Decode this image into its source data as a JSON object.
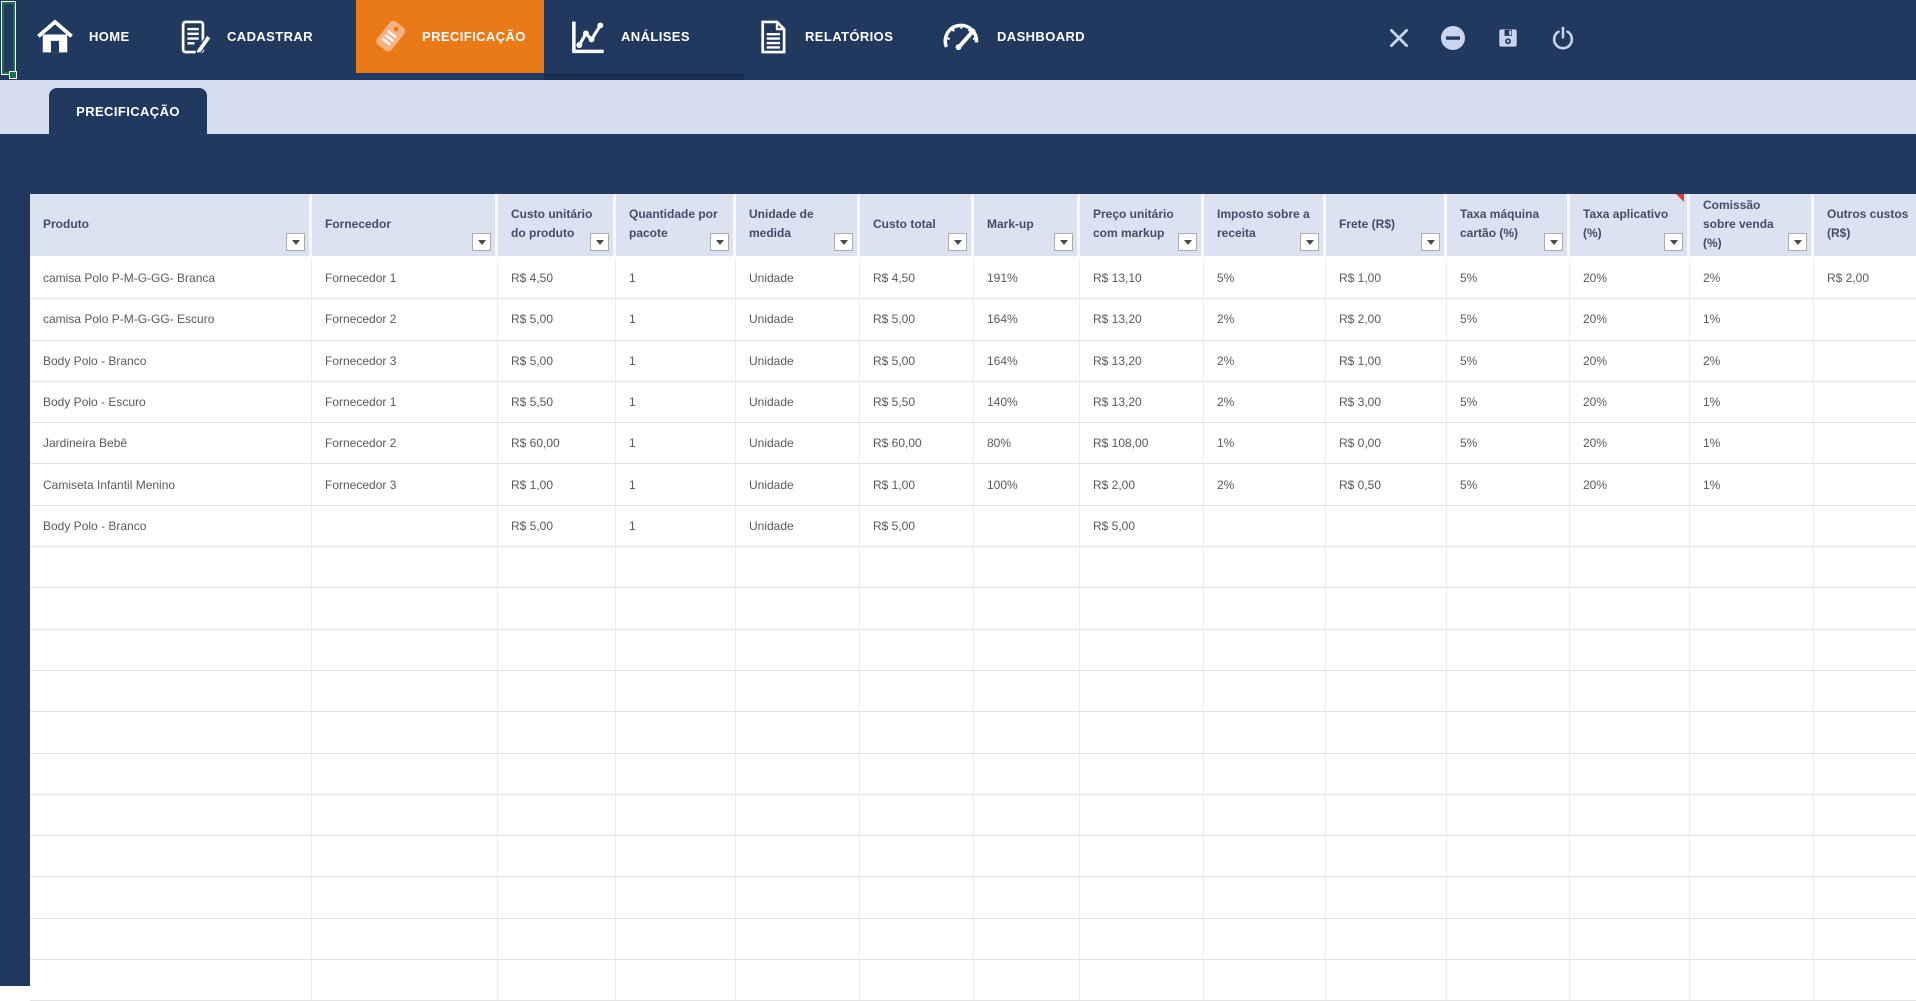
{
  "navbar": {
    "items": [
      {
        "id": "home",
        "label": "HOME",
        "icon": "home-icon",
        "active": false
      },
      {
        "id": "cadastrar",
        "label": "CADASTRAR",
        "icon": "document-pencil-icon",
        "active": false
      },
      {
        "id": "precificacao",
        "label": "PRECIFICAÇÃO",
        "icon": "price-tag-icon",
        "active": true
      },
      {
        "id": "analises",
        "label": "ANÁLISES",
        "icon": "line-chart-icon",
        "active": false
      },
      {
        "id": "relatorios",
        "label": "RELATÓRIOS",
        "icon": "report-document-icon",
        "active": false
      },
      {
        "id": "dashboard",
        "label": "DASHBOARD",
        "icon": "gauge-icon",
        "active": false
      }
    ],
    "window_controls": [
      {
        "id": "close",
        "icon": "close-icon"
      },
      {
        "id": "minimize",
        "icon": "minimize-circle-icon"
      },
      {
        "id": "save",
        "icon": "save-floppy-icon"
      },
      {
        "id": "power",
        "icon": "power-icon"
      }
    ]
  },
  "tabstrip": {
    "tabs": [
      {
        "label": "PRECIFICAÇÃO",
        "active": true
      }
    ]
  },
  "table": {
    "columns": [
      "Produto",
      "Fornecedor",
      "Custo unitário do produto",
      "Quantidade por pacote",
      "Unidade de medida",
      "Custo total",
      "Mark-up",
      "Preço unitário com markup",
      "Imposto sobre a receita",
      "Frete (R$)",
      "Taxa máquina cartão (%)",
      "Taxa aplicativo (%)",
      "Comissão sobre venda (%)",
      "Outros custos (R$)"
    ],
    "comment_marker_column_index": 11,
    "has_filter_buttons": true,
    "rows": [
      [
        "camisa Polo P-M-G-GG- Branca",
        "Fornecedor 1",
        "R$ 4,50",
        "1",
        "Unidade",
        "R$ 4,50",
        "191%",
        "R$ 13,10",
        "5%",
        "R$ 1,00",
        "5%",
        "20%",
        "2%",
        "R$ 2,00"
      ],
      [
        "camisa Polo P-M-G-GG- Escuro",
        "Fornecedor 2",
        "R$ 5,00",
        "1",
        "Unidade",
        "R$ 5,00",
        "164%",
        "R$ 13,20",
        "2%",
        "R$ 2,00",
        "5%",
        "20%",
        "1%",
        ""
      ],
      [
        "Body Polo - Branco",
        "Fornecedor 3",
        "R$ 5,00",
        "1",
        "Unidade",
        "R$ 5,00",
        "164%",
        "R$ 13,20",
        "2%",
        "R$ 1,00",
        "5%",
        "20%",
        "2%",
        ""
      ],
      [
        "Body Polo - Escuro",
        "Fornecedor 1",
        "R$ 5,50",
        "1",
        "Unidade",
        "R$ 5,50",
        "140%",
        "R$ 13,20",
        "2%",
        "R$ 3,00",
        "5%",
        "20%",
        "1%",
        ""
      ],
      [
        "Jardineira Bebê",
        "Fornecedor 2",
        "R$ 60,00",
        "1",
        "Unidade",
        "R$ 60,00",
        "80%",
        "R$ 108,00",
        "1%",
        "R$ 0,00",
        "5%",
        "20%",
        "1%",
        ""
      ],
      [
        "Camiseta Infantil Menino",
        "Fornecedor 3",
        "R$ 1,00",
        "1",
        "Unidade",
        "R$ 1,00",
        "100%",
        "R$ 2,00",
        "2%",
        "R$ 0,50",
        "5%",
        "20%",
        "1%",
        ""
      ],
      [
        "Body Polo - Branco",
        "",
        "R$ 5,00",
        "1",
        "Unidade",
        "R$ 5,00",
        "",
        "R$ 5,00",
        "",
        "",
        "",
        "",
        "",
        ""
      ]
    ],
    "empty_row_count": 11
  },
  "colors": {
    "navbar_navy": "#21395F",
    "active_orange": "#E97A17",
    "tabstrip_blue": "#D5DDEE",
    "header_lavender": "#DCE2F1",
    "header_text": "#3F4E6B",
    "cell_text": "#595959",
    "selection_green": "#1E7145",
    "comment_red": "#E03C31",
    "window_icon_blue": "#C9D5EF"
  }
}
